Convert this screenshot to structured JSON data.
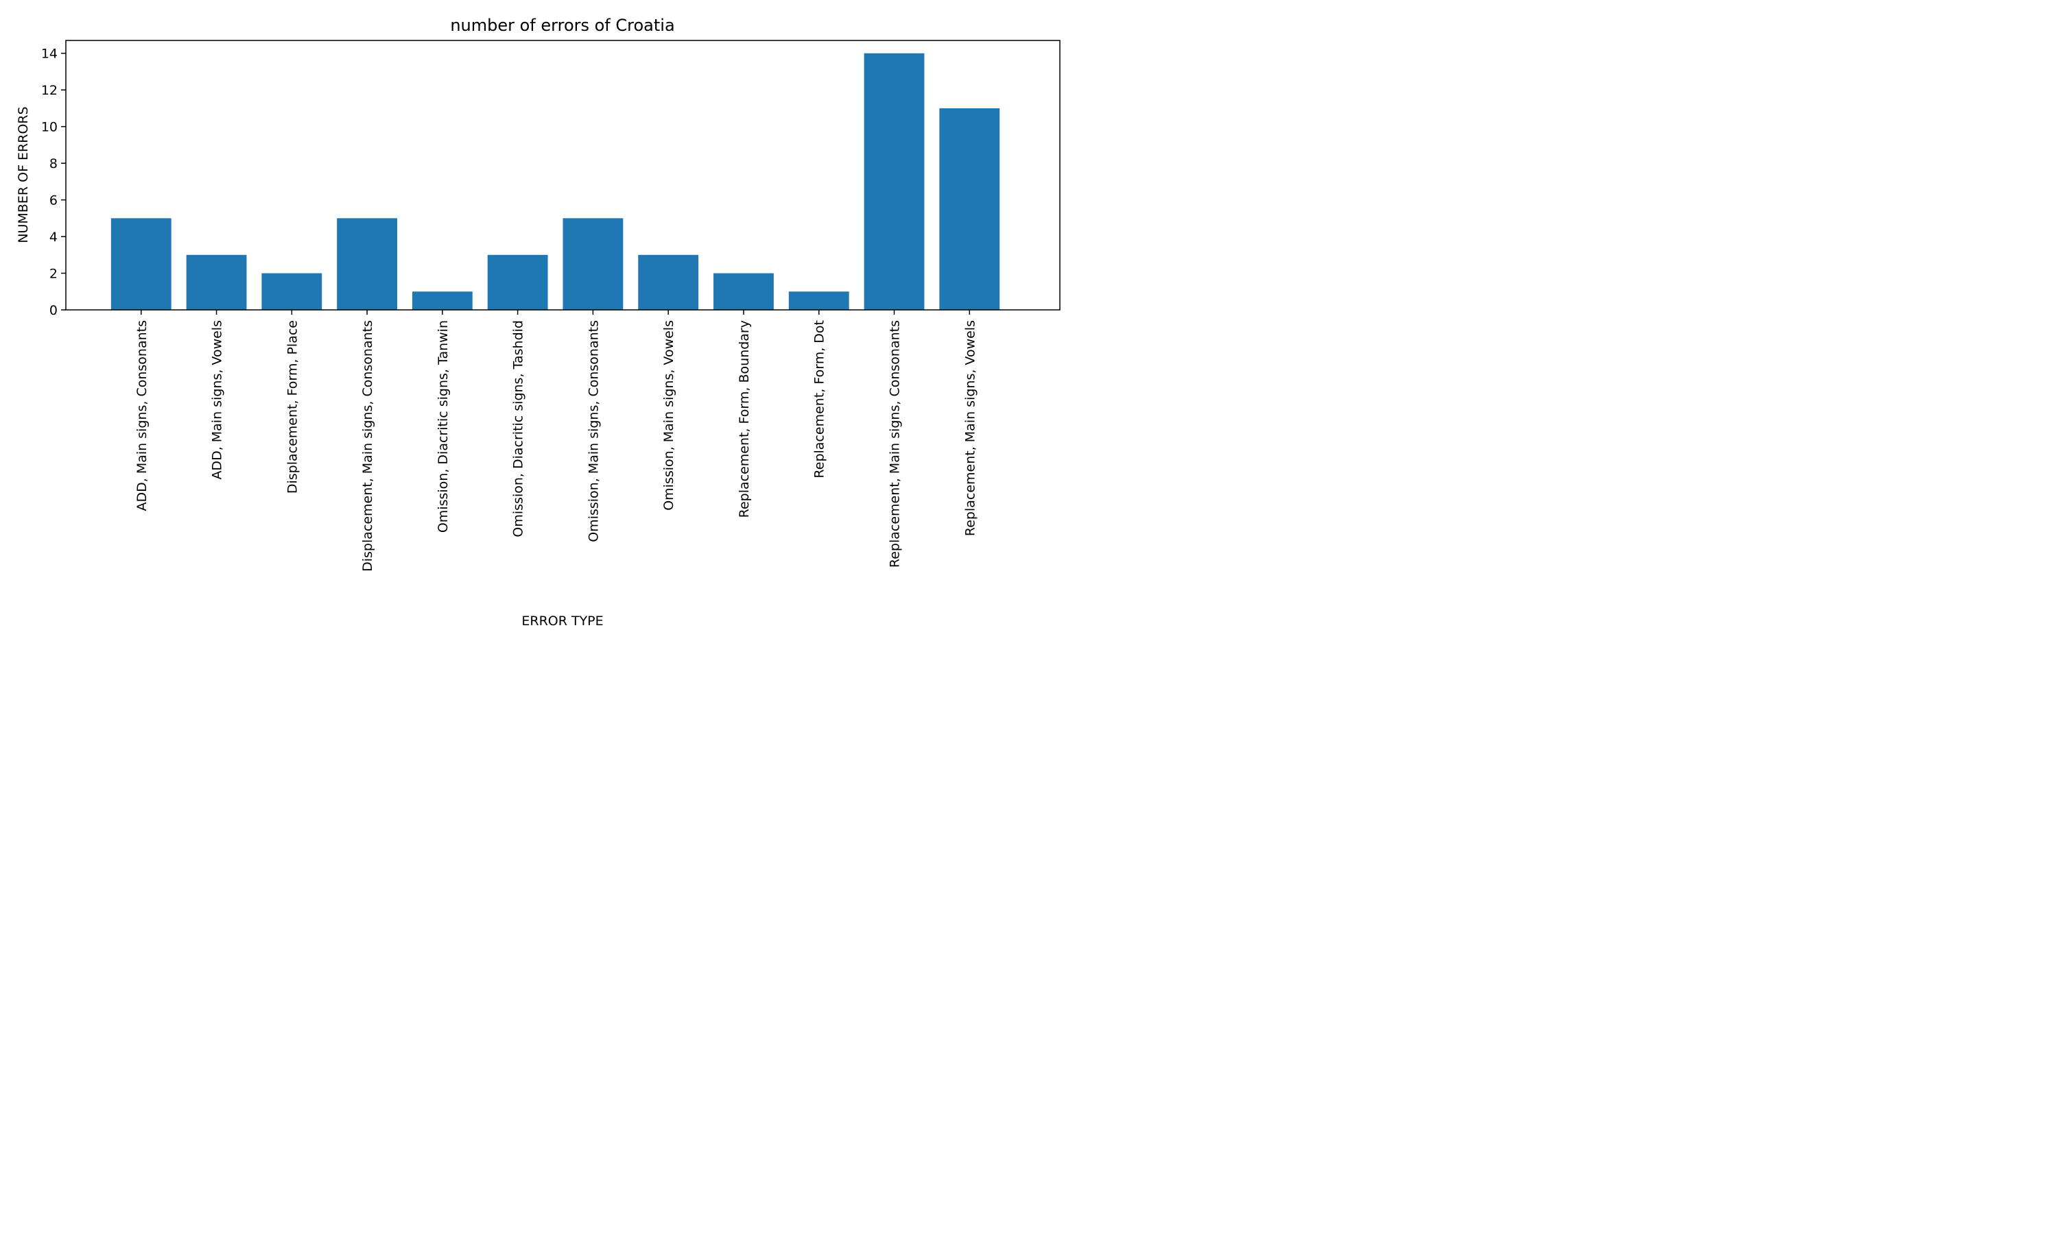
{
  "chart_data": {
    "type": "bar",
    "title": "number of errors of Croatia",
    "xlabel": "ERROR TYPE",
    "ylabel": "NUMBER OF ERRORS",
    "categories": [
      "ADD, Main signs, Consonants",
      "ADD, Main signs, Vowels",
      "Displacement, Form, Place",
      "Displacement, Main signs, Consonants",
      "Omission, Diacritic signs, Tanwin",
      "Omission, Diacritic signs, Tashdid",
      "Omission, Main signs, Consonants",
      "Omission, Main signs, Vowels",
      "Replacement, Form, Boundary",
      "Replacement, Form, Dot",
      "Replacement, Main signs, Consonants",
      "Replacement, Main signs, Vowels"
    ],
    "values": [
      5,
      3,
      2,
      5,
      1,
      3,
      5,
      3,
      2,
      1,
      14,
      11
    ],
    "ylim": [
      0,
      14.7
    ],
    "yticks": [
      0,
      2,
      4,
      6,
      8,
      10,
      12,
      14
    ],
    "bar_color": "#1f77b4",
    "grid": false,
    "legend": "none"
  }
}
